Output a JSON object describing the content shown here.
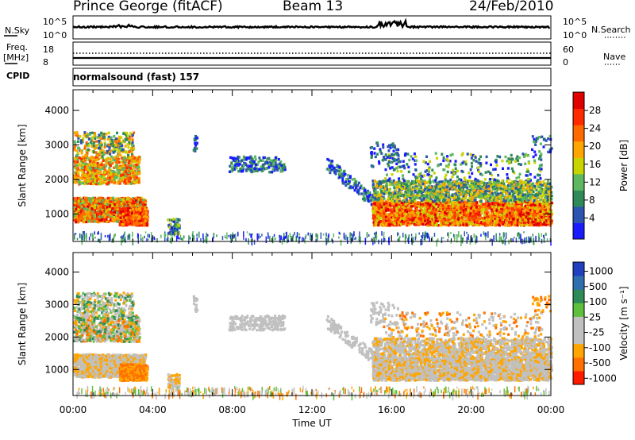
{
  "header": {
    "radar": "Prince George (fitACF)",
    "beam": "Beam 13",
    "date": "24/Feb/2010"
  },
  "strip": {
    "nsky_label": "N.Sky",
    "nsky_ticks": [
      "10^5",
      "10^0"
    ],
    "nsearch_label": "N.Search",
    "nsearch_ticks": [
      "10^5",
      "10^0"
    ],
    "freq_label_1": "Freq.",
    "freq_label_2": "[MHz]",
    "freq_ticks": [
      "18",
      "8"
    ],
    "nave_label": "Nave",
    "nave_ticks": [
      "60",
      "0"
    ],
    "cpid_label": "CPID",
    "cpid_text": "normalsound (fast) 157"
  },
  "colors": {
    "power_scale": [
      "#1a1aff",
      "#2b55b0",
      "#2e8b57",
      "#5fb85f",
      "#c8d400",
      "#ffa500",
      "#ff6a00",
      "#ff2a00",
      "#e00000"
    ],
    "velocity_scale": [
      "#2040c0",
      "#2f6fb0",
      "#2e8b57",
      "#5ec03c",
      "#c0c0c0",
      "#c0c0c0",
      "#ffa500",
      "#ff7000",
      "#ff1a00"
    ]
  },
  "chart_data": [
    {
      "type": "heatmap",
      "panel": "power",
      "x_ticks": [
        "00:00",
        "04:00",
        "08:00",
        "12:00",
        "16:00",
        "20:00",
        "00:00"
      ],
      "xlabel": "Time UT",
      "ylabel": "Slant Range [km]",
      "y_ticks": [
        "1000",
        "2000",
        "3000",
        "4000"
      ],
      "ylim": [
        200,
        4600
      ],
      "colorbar_label": "Power [dB]",
      "colorbar_ticks": [
        "4",
        "8",
        "12",
        "16",
        "20",
        "24",
        "28"
      ],
      "regions": [
        {
          "t0": 0.0,
          "t1": 3.6,
          "r0": 700,
          "r1": 3300,
          "level": "high"
        },
        {
          "t0": 4.8,
          "t1": 5.2,
          "r0": 400,
          "r1": 1000,
          "level": "low"
        },
        {
          "t0": 7.8,
          "t1": 10.5,
          "r0": 2300,
          "r1": 2700,
          "level": "low"
        },
        {
          "t0": 14.8,
          "t1": 24.0,
          "r0": 700,
          "r1": 2200,
          "level": "high"
        }
      ]
    },
    {
      "type": "heatmap",
      "panel": "velocity",
      "x_ticks": [
        "00:00",
        "04:00",
        "08:00",
        "12:00",
        "16:00",
        "20:00",
        "00:00"
      ],
      "xlabel": "Time UT",
      "ylabel": "Slant Range [km]",
      "y_ticks": [
        "1000",
        "2000",
        "3000",
        "4000"
      ],
      "ylim": [
        200,
        4600
      ],
      "colorbar_label": "Velocity [m s⁻¹]",
      "colorbar_ticks": [
        "1000",
        "500",
        "100",
        "25",
        "-25",
        "-100",
        "-500",
        "-1000"
      ]
    }
  ]
}
